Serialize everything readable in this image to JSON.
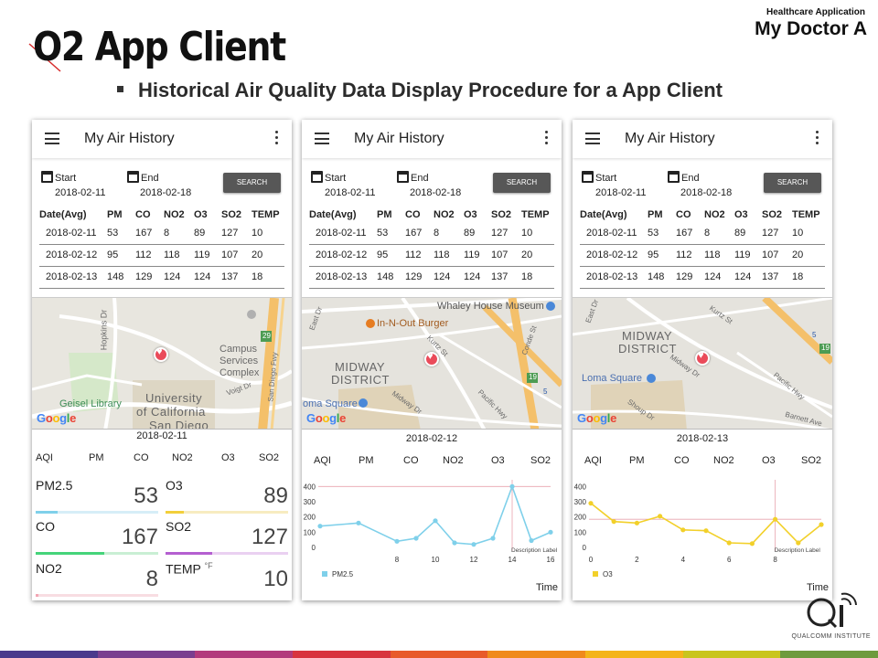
{
  "slide": {
    "title": "O2 App Client",
    "header_small": "Healthcare Application",
    "header_large": "My Doctor A",
    "subtitle": "Historical Air Quality Data Display Procedure for a App Client",
    "footer_caption": "QUALCOMM INSTITUTE",
    "stripe_colors": [
      "#4a3a8c",
      "#7a3f8f",
      "#b23b7c",
      "#d8343f",
      "#e85a2a",
      "#f08a1c",
      "#f4b41a",
      "#c9c51e",
      "#6e9b3e"
    ]
  },
  "app": {
    "title": "My Air History",
    "start_label": "Start",
    "end_label": "End",
    "start_date": "2018-02-11",
    "end_date": "2018-02-18",
    "search_label": "SEARCH",
    "table": {
      "headers": [
        "Date(Avg)",
        "PM",
        "CO",
        "NO2",
        "O3",
        "SO2",
        "TEMP"
      ],
      "rows": [
        [
          "2018-02-11",
          "53",
          "167",
          "8",
          "89",
          "127",
          "10"
        ],
        [
          "2018-02-12",
          "95",
          "112",
          "118",
          "119",
          "107",
          "20"
        ],
        [
          "2018-02-13",
          "148",
          "129",
          "124",
          "124",
          "137",
          "18"
        ]
      ]
    },
    "aqi_tabs": [
      "AQI",
      "PM",
      "CO",
      "NO2",
      "O3",
      "SO2"
    ],
    "google": "Google"
  },
  "phone1": {
    "selected_date": "2018-02-11",
    "map_labels": {
      "hopkins": "Hopkins Dr",
      "campus": "Campus",
      "services": "Services",
      "complex": "Complex",
      "geisel": "Geisel Library",
      "university": "University",
      "california": "of California",
      "sandiego": "San Diego",
      "voigt": "Voigt Dr",
      "fwy": "San Diego Fwy",
      "route": "29"
    },
    "metrics": [
      {
        "name": "PM2.5",
        "unit": "",
        "value": "53",
        "level": 0.18,
        "color": "#7fd0ea",
        "track": "#d6eef7"
      },
      {
        "name": "O3",
        "unit": "",
        "value": "89",
        "level": 0.15,
        "color": "#f2cf3b",
        "track": "#f7ecc0"
      },
      {
        "name": "CO",
        "unit": "",
        "value": "167",
        "level": 0.56,
        "color": "#45d47a",
        "track": "#c9efd4"
      },
      {
        "name": "SO2",
        "unit": "",
        "value": "127",
        "level": 0.38,
        "color": "#b45fd0",
        "track": "#ead0f1"
      },
      {
        "name": "NO2",
        "unit": "",
        "value": "8",
        "level": 0.02,
        "color": "#f2a6b4",
        "track": "#f8dde2"
      },
      {
        "name": "TEMP",
        "unit": "°F",
        "value": "10",
        "level": 0.0,
        "color": "#cccccc",
        "track": "#ffffff"
      }
    ]
  },
  "phone2": {
    "selected_date": "2018-02-12",
    "map_labels": {
      "whaley": "Whaley House Museum",
      "innout": "In-N-Out Burger",
      "midway": "MIDWAY",
      "district": "DISTRICT",
      "loma": "oma Square",
      "kurtz": "Kurtz St",
      "pacific": "Pacific Hwy",
      "midwaydr": "Midway Dr",
      "east": "East Dr",
      "congress": "Conde St",
      "route": "19",
      "interstate": "5"
    }
  },
  "phone3": {
    "selected_date": "2018-02-13",
    "map_labels": {
      "midway": "MIDWAY",
      "district": "DISTRICT",
      "loma": "Loma Square",
      "kurtz": "Kurtz St",
      "midwaydr": "Midway Dr",
      "pacific": "Pacific Hwy",
      "barnett": "Barnett Ave",
      "east": "East Dr",
      "shoup": "Shoup Dr",
      "route": "19",
      "interstate": "5"
    }
  },
  "chart_data": [
    {
      "type": "line",
      "series": [
        {
          "name": "PM2.5",
          "values": [
            140,
            160,
            40,
            60,
            175,
            30,
            20,
            60,
            400,
            45,
            100
          ]
        }
      ],
      "x": [
        4,
        6,
        8,
        9,
        10,
        11,
        12,
        13,
        14,
        15,
        16
      ],
      "xticks": [
        8,
        10,
        12,
        14,
        16
      ],
      "yticks": [
        0,
        100,
        200,
        300,
        400
      ],
      "ylim": [
        0,
        420
      ],
      "xlim": [
        4,
        16
      ],
      "xlabel": "Time",
      "annotation": "Description Label",
      "highlight_x": 14,
      "highlight_y": 400,
      "color": "#7fd0ea",
      "grid": false,
      "legend": "bottom-left"
    },
    {
      "type": "line",
      "series": [
        {
          "name": "O3",
          "values": [
            290,
            170,
            160,
            205,
            115,
            110,
            30,
            25,
            185,
            30,
            150
          ]
        }
      ],
      "x": [
        0,
        1,
        2,
        3,
        4,
        5,
        6,
        7,
        8,
        9,
        10
      ],
      "xticks": [
        0,
        2,
        4,
        6,
        8
      ],
      "yticks": [
        0,
        100,
        200,
        300,
        400
      ],
      "ylim": [
        0,
        420
      ],
      "xlim": [
        0,
        10
      ],
      "xlabel": "Time",
      "annotation": "Description Label",
      "highlight_x": 8,
      "highlight_y": 185,
      "color": "#f2d02a",
      "grid": false,
      "legend": "bottom-left"
    }
  ]
}
